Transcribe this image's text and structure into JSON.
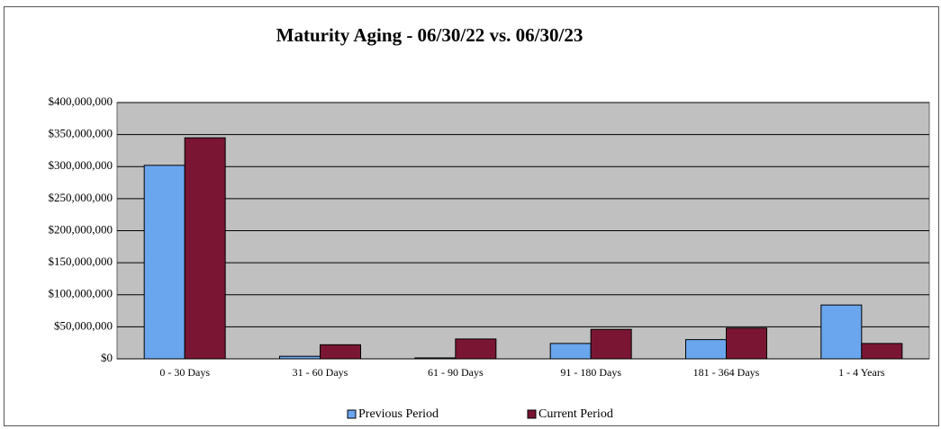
{
  "chart_data": {
    "type": "bar",
    "title": "Maturity Aging - 06/30/22 vs. 06/30/23",
    "categories": [
      "0 - 30 Days",
      "31 - 60 Days",
      "61 - 90 Days",
      "91 - 180 Days",
      "181 - 364 Days",
      "1 - 4 Years"
    ],
    "series": [
      {
        "name": "Previous Period",
        "color": "#6aa6ee",
        "values": [
          302000000,
          4000000,
          1500000,
          24000000,
          30000000,
          84000000
        ]
      },
      {
        "name": "Current Period",
        "color": "#7a1634",
        "values": [
          345000000,
          22000000,
          31000000,
          46000000,
          48000000,
          24000000
        ]
      }
    ],
    "ylim": [
      0,
      400000000
    ],
    "yticks": [
      {
        "value": 0,
        "label": "$0"
      },
      {
        "value": 50000000,
        "label": "$50,000,000"
      },
      {
        "value": 100000000,
        "label": "$100,000,000"
      },
      {
        "value": 150000000,
        "label": "$150,000,000"
      },
      {
        "value": 200000000,
        "label": "$200,000,000"
      },
      {
        "value": 250000000,
        "label": "$250,000,000"
      },
      {
        "value": 300000000,
        "label": "$300,000,000"
      },
      {
        "value": 350000000,
        "label": "$350,000,000"
      },
      {
        "value": 400000000,
        "label": "$400,000,000"
      }
    ],
    "grid": true,
    "legend": "bottom"
  }
}
